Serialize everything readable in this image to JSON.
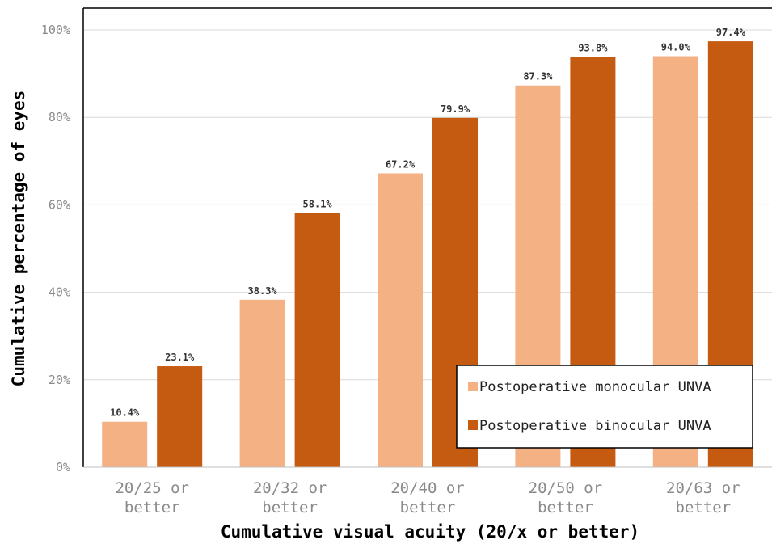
{
  "chart_data": {
    "type": "bar",
    "title": "",
    "xlabel": "Cumulative visual acuity (20/x or better)",
    "ylabel": "Cumulative percentage of eyes",
    "ylim": [
      0,
      100
    ],
    "yticks": [
      0,
      20,
      40,
      60,
      80,
      100
    ],
    "ytick_labels": [
      "0%",
      "20%",
      "40%",
      "60%",
      "80%",
      "100%"
    ],
    "grid": true,
    "legend_position": "bottom-right",
    "categories": [
      [
        "20/25 or",
        "better"
      ],
      [
        "20/32 or",
        "better"
      ],
      [
        "20/40 or",
        "better"
      ],
      [
        "20/50 or",
        "better"
      ],
      [
        "20/63 or",
        "better"
      ]
    ],
    "series": [
      {
        "name": "Postoperative monocular UNVA",
        "color": "#F4B183",
        "values": [
          10.4,
          38.3,
          67.2,
          87.3,
          94.0
        ],
        "labels": [
          "10.4%",
          "38.3%",
          "67.2%",
          "87.3%",
          "94.0%"
        ]
      },
      {
        "name": "Postoperative binocular UNVA",
        "color": "#C55A11",
        "values": [
          23.1,
          58.1,
          79.9,
          93.8,
          97.4
        ],
        "labels": [
          "23.1%",
          "58.1%",
          "79.9%",
          "93.8%",
          "97.4%"
        ]
      }
    ]
  }
}
